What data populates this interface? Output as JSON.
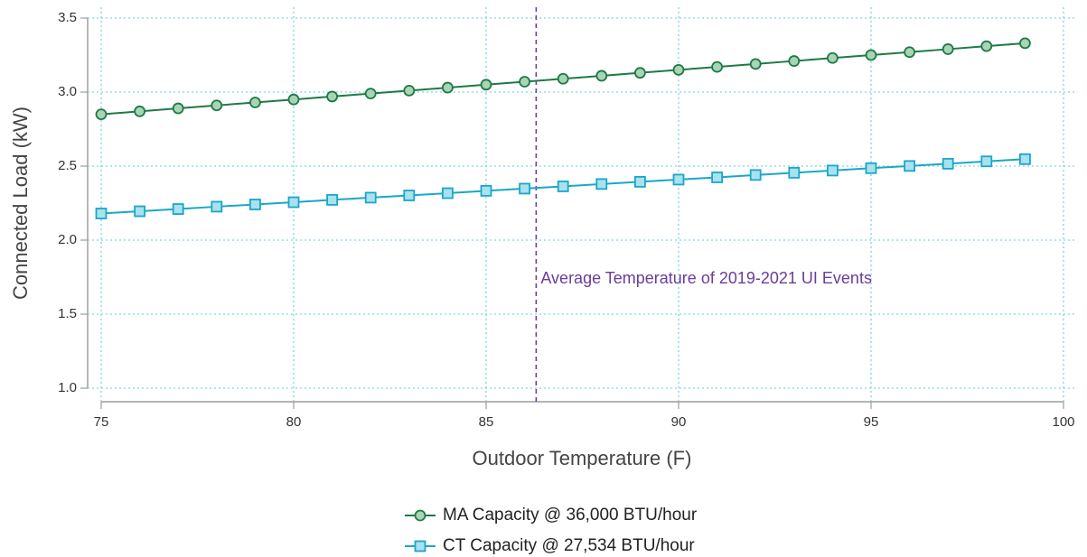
{
  "chart_data": {
    "type": "line",
    "x_label": "Outdoor Temperature (F)",
    "y_label": "Connected Load (kW)",
    "x": [
      75,
      76,
      77,
      78,
      79,
      80,
      81,
      82,
      83,
      84,
      85,
      86,
      87,
      88,
      89,
      90,
      91,
      92,
      93,
      94,
      95,
      96,
      97,
      98,
      99
    ],
    "series": [
      {
        "name": "MA Capacity @ 36,000 BTU/hour",
        "color": "#1e7a45",
        "marker_fill": "#a8d5b5",
        "marker": "circle",
        "values": [
          2.85,
          2.87,
          2.89,
          2.91,
          2.93,
          2.95,
          2.97,
          2.99,
          3.01,
          3.03,
          3.05,
          3.07,
          3.09,
          3.11,
          3.13,
          3.15,
          3.17,
          3.19,
          3.21,
          3.23,
          3.25,
          3.27,
          3.29,
          3.31,
          3.33
        ]
      },
      {
        "name": "CT Capacity @ 27,534 BTU/hour",
        "color": "#1aa7c9",
        "marker_fill": "#a9e1ee",
        "marker": "square",
        "values": [
          2.18,
          2.195,
          2.21,
          2.226,
          2.241,
          2.256,
          2.272,
          2.287,
          2.302,
          2.317,
          2.333,
          2.348,
          2.363,
          2.379,
          2.394,
          2.409,
          2.424,
          2.44,
          2.455,
          2.47,
          2.486,
          2.501,
          2.516,
          2.532,
          2.547
        ]
      }
    ],
    "xlim": [
      75,
      100
    ],
    "xticks": [
      75,
      80,
      85,
      90,
      95,
      100
    ],
    "ylim": [
      1.0,
      3.5
    ],
    "yticks": [
      {
        "value": 1,
        "label": "1.0"
      },
      1.5,
      {
        "value": 2,
        "label": "2.0"
      },
      2.5,
      {
        "value": 3,
        "label": "3.0"
      },
      3.5
    ],
    "grid": true,
    "grid_color": "#7fd3e6",
    "vline": {
      "x": 86.3,
      "label": "Average Temperature of 2019-2021 UI Events",
      "color": "#6a3d9a"
    },
    "legend": "bottom"
  }
}
